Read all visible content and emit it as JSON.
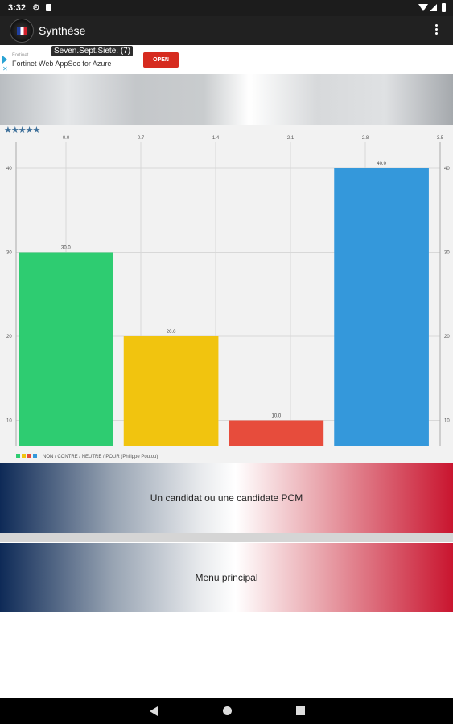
{
  "status_bar": {
    "time": "3:32"
  },
  "app_bar": {
    "title": "Synthèse"
  },
  "ad": {
    "sponsor": "Fortinet",
    "text": "Fortinet Web AppSec for Azure",
    "open_label": "OPEN"
  },
  "tooltip": "Seven.Sept.Siete. (7)",
  "rating": {
    "stars": "★★★★★"
  },
  "chart_data": {
    "type": "bar",
    "categories": [
      "NON",
      "CONTRE",
      "NEUTRE",
      "POUR"
    ],
    "values": [
      30.0,
      20.0,
      10.0,
      40.0
    ],
    "data_labels": [
      "30.0",
      "20.0",
      "10.0",
      "40.0"
    ],
    "colors": [
      "#2ecc71",
      "#f1c40f",
      "#e74c3c",
      "#3498db"
    ],
    "top_axis_ticks": [
      "0.0",
      "0.7",
      "1.4",
      "2.1",
      "2.8",
      "3.5"
    ],
    "left_axis_ticks": [
      "10",
      "20",
      "30",
      "40"
    ],
    "right_axis_ticks": [
      "10",
      "20",
      "30",
      "40"
    ],
    "legend_label": "NON / CONTRE / NEUTRE / POUR (Philippe Poutou)",
    "legend_placement": "bottom-left",
    "grid": true
  },
  "buttons": {
    "candidat_label": "Un candidat ou une candidate PCM",
    "menu_label": "Menu principal"
  }
}
